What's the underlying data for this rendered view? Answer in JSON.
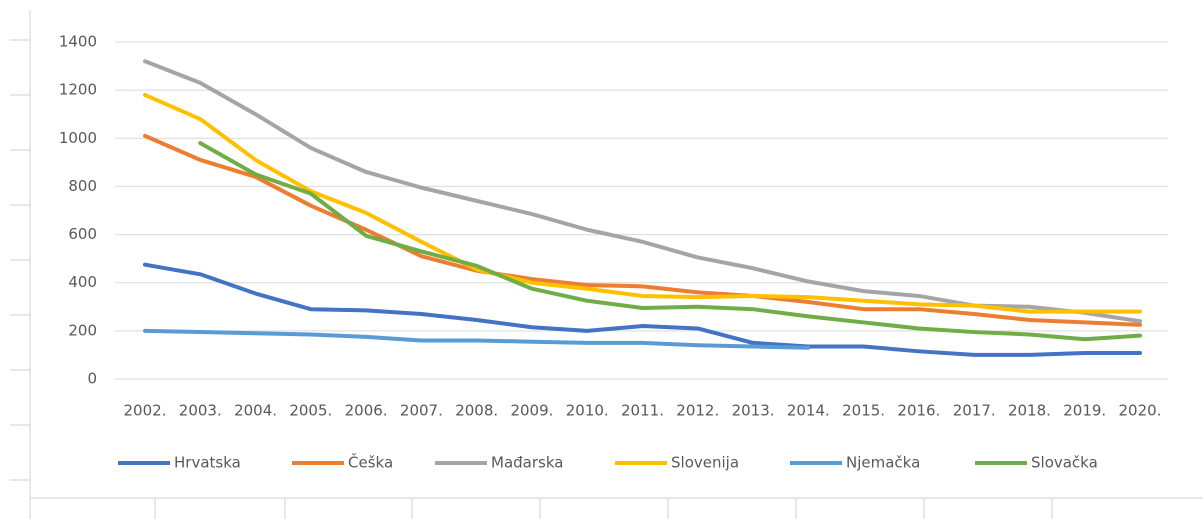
{
  "chart_data": {
    "type": "line",
    "categories": [
      "2002.",
      "2003.",
      "2004.",
      "2005.",
      "2006.",
      "2007.",
      "2008.",
      "2009.",
      "2010.",
      "2011.",
      "2012.",
      "2013.",
      "2014.",
      "2015.",
      "2016.",
      "2017.",
      "2018.",
      "2019.",
      "2020."
    ],
    "series": [
      {
        "name": "Hrvatska",
        "color": "#4472c4",
        "values": [
          475,
          435,
          355,
          290,
          285,
          270,
          245,
          215,
          200,
          220,
          210,
          150,
          135,
          135,
          115,
          100,
          100,
          108,
          108
        ]
      },
      {
        "name": "Češka",
        "color": "#ed7d31",
        "values": [
          1010,
          910,
          840,
          720,
          620,
          510,
          450,
          415,
          390,
          385,
          360,
          345,
          320,
          290,
          290,
          270,
          245,
          235,
          225
        ]
      },
      {
        "name": "Mađarska",
        "color": "#a5a5a5",
        "values": [
          1320,
          1230,
          1100,
          960,
          860,
          795,
          740,
          685,
          620,
          570,
          505,
          460,
          405,
          365,
          345,
          305,
          300,
          275,
          240
        ]
      },
      {
        "name": "Slovenija",
        "color": "#ffc000",
        "values": [
          1180,
          1080,
          910,
          780,
          690,
          570,
          455,
          400,
          375,
          345,
          340,
          345,
          340,
          325,
          310,
          305,
          280,
          280,
          280
        ]
      },
      {
        "name": "Njemačka",
        "color": "#5b9bd5",
        "values": [
          200,
          195,
          190,
          185,
          175,
          160,
          160,
          155,
          150,
          150,
          140,
          135,
          130,
          null,
          null,
          null,
          null,
          null,
          null
        ]
      },
      {
        "name": "Slovačka",
        "color": "#70ad47",
        "values": [
          null,
          980,
          850,
          770,
          595,
          530,
          470,
          375,
          325,
          295,
          300,
          290,
          260,
          235,
          210,
          195,
          185,
          165,
          180
        ]
      }
    ],
    "ylim": [
      0,
      1400
    ],
    "yticks": [
      0,
      200,
      400,
      600,
      800,
      1000,
      1200,
      1400
    ],
    "grid": true,
    "legend": "bottom"
  }
}
